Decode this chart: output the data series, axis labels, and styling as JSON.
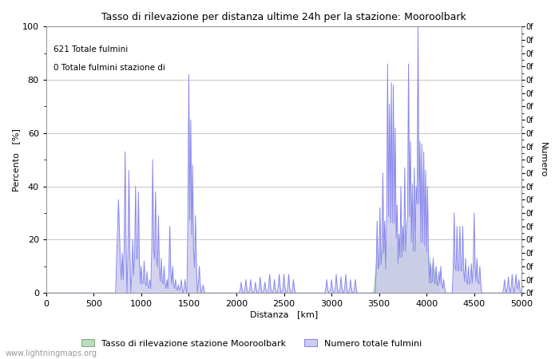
{
  "title": "Tasso di rilevazione per distanza ultime 24h per la stazione: Mooroolbark",
  "xlabel": "Distanza   [km]",
  "ylabel_left": "Percento   [%]",
  "ylabel_right": "Numero",
  "annotation_line1": "621 Totale fulmini",
  "annotation_line2": "0 Totale fulmini stazione di",
  "legend_green": "Tasso di rilevazione stazione Mooroolbark",
  "legend_blue": "Numero totale fulmini",
  "watermark": "www.lightningmaps.org",
  "xlim": [
    0,
    5000
  ],
  "ylim_left": [
    0,
    100
  ],
  "ylim_right": [
    0,
    100
  ],
  "right_tick_labels": [
    "0f",
    "0f",
    "0f",
    "0f",
    "0f",
    "0f",
    "0f",
    "0f",
    "0f",
    "0f",
    "0f",
    "0f",
    "0f",
    "0f",
    "0f",
    "0f",
    "0f",
    "0f",
    "0f",
    "0f",
    "0f"
  ],
  "right_yticks": [
    0,
    5,
    10,
    15,
    20,
    25,
    30,
    35,
    40,
    45,
    50,
    55,
    60,
    65,
    70,
    75,
    80,
    85,
    90,
    95,
    100
  ],
  "bg_color": "#ffffff",
  "plot_bg_color": "#ffffff",
  "grid_color": "#bbbbbb",
  "line_color": "#8888ee",
  "fill_blue_color": "#ccccee",
  "fill_green_color": "#bbddbb"
}
